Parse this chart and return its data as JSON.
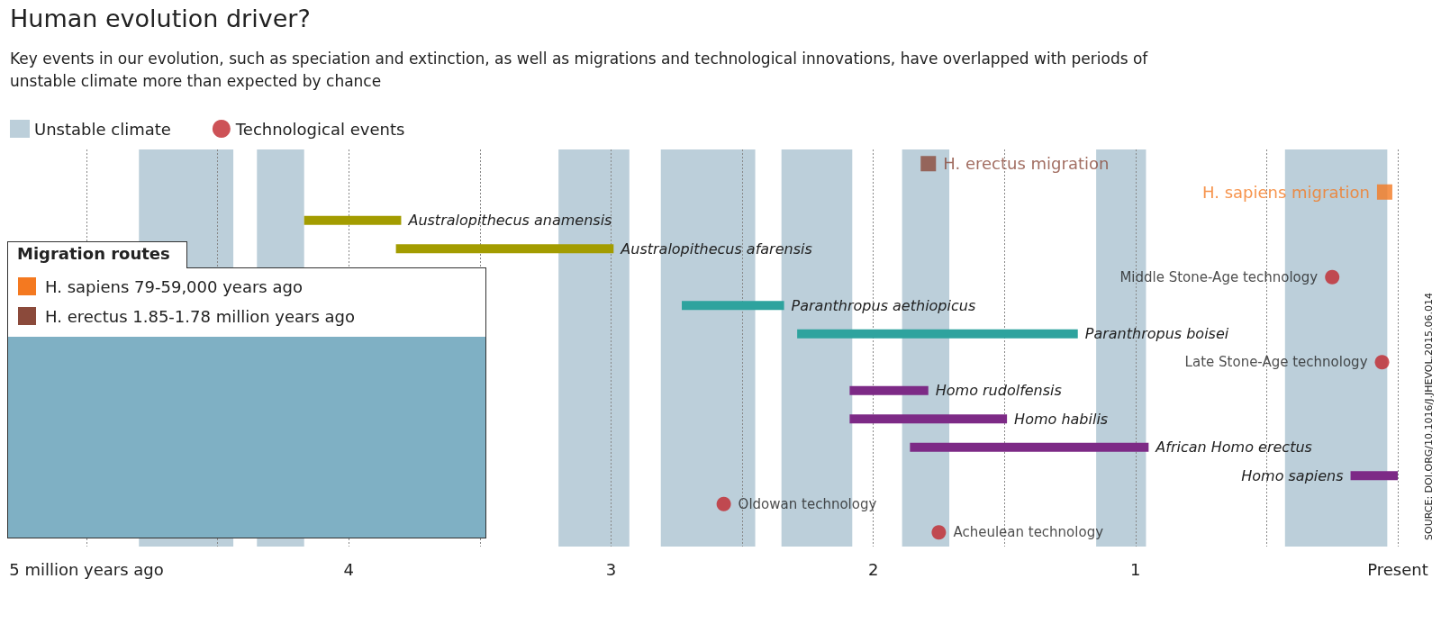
{
  "chart_data": {
    "type": "bar",
    "orientation": "horizontal",
    "title": "Human evolution driver?",
    "subtitle": "Key events in our evolution, such as speciation and extinction, as well as migrations and technological innovations, have overlapped with periods of unstable climate more than expected by chance",
    "categories": [
      "H. erectus migration",
      "H. sapiens migration",
      "Australopithecus anamensis",
      "Australopithecus afarensis",
      "Middle Stone-Age technology",
      "Paranthropus aethiopicus",
      "Paranthropus boisei",
      "Late Stone-Age technology",
      "Homo rudolfensis",
      "Homo habilis",
      "African Homo erectus",
      "Homo sapiens",
      "Oldowan technology",
      "Acheulean technology"
    ],
    "xlim": [
      5,
      0
    ],
    "xticks": [
      {
        "value": 5,
        "label": "5 million years ago"
      },
      {
        "value": 4.5,
        "label": null
      },
      4,
      {
        "value": 3.5,
        "label": null
      },
      3,
      {
        "value": 2.5,
        "label": null
      },
      2,
      {
        "value": 1.5,
        "label": null
      },
      1,
      {
        "value": 0.5,
        "label": null
      },
      {
        "value": 0,
        "label": "Present"
      }
    ],
    "grid": "x",
    "legend": "top left",
    "tick_labels": "x",
    "bands": [
      {
        "axis": "x",
        "from": 4.8,
        "to": 4.44,
        "label": "Unstable climate",
        "color": "#bccfda"
      },
      {
        "axis": "x",
        "from": 4.35,
        "to": 4.17,
        "color": "#bccfda"
      },
      {
        "axis": "x",
        "from": 3.2,
        "to": 2.93,
        "color": "#bccfda"
      },
      {
        "axis": "x",
        "from": 2.81,
        "to": 2.45,
        "color": "#bccfda"
      },
      {
        "axis": "x",
        "from": 2.35,
        "to": 2.08,
        "color": "#bccfda"
      },
      {
        "axis": "x",
        "from": 1.89,
        "to": 1.71,
        "color": "#bccfda"
      },
      {
        "axis": "x",
        "from": 1.15,
        "to": 0.96,
        "color": "#bccfda"
      },
      {
        "axis": "x",
        "from": 0.43,
        "to": 0.04,
        "color": "#bccfda"
      }
    ],
    "series": [
      {
        "type": "bar",
        "values": [
          null,
          null,
          0.37,
          0.83,
          null,
          0.39,
          1.07,
          null,
          0.3,
          0.6,
          0.91,
          0.18,
          null,
          null
        ],
        "base": [
          null,
          null,
          3.8,
          2.99,
          null,
          2.34,
          1.22,
          null,
          1.79,
          1.49,
          0.95,
          0,
          null,
          null
        ],
        "colors": [
          null,
          null,
          "#a39c00",
          "#a39c00",
          null,
          "#2ea39e",
          "#2ea39e",
          null,
          "#7d2a86",
          "#7d2a86",
          "#7d2a86",
          "#7d2a86",
          null,
          null
        ]
      },
      {
        "type": "scatter",
        "name": "Technological events",
        "color": "#c1272d",
        "marker": "circle",
        "x": [
          "Middle Stone-Age technology",
          "Late Stone-Age technology",
          "Oldowan technology",
          "Acheulean technology"
        ],
        "values": [
          0.25,
          0.06,
          2.57,
          1.75
        ]
      },
      {
        "type": "scatter",
        "color": "#f47920",
        "marker": "square",
        "x": [
          "H. sapiens migration"
        ],
        "values": [
          0.05
        ]
      },
      {
        "type": "scatter",
        "color": "#8b4a3b",
        "marker": "square",
        "x": [
          "H. erectus migration"
        ],
        "values": [
          1.79
        ]
      }
    ],
    "annotations": [
      "Migration routes",
      "H. sapiens 79-59,000 years ago",
      "H. erectus 1.85-1.78 million years ago",
      "SOURCE: DOI.ORG/10.1016/J.JHEVOL.2015.06.014"
    ]
  }
}
